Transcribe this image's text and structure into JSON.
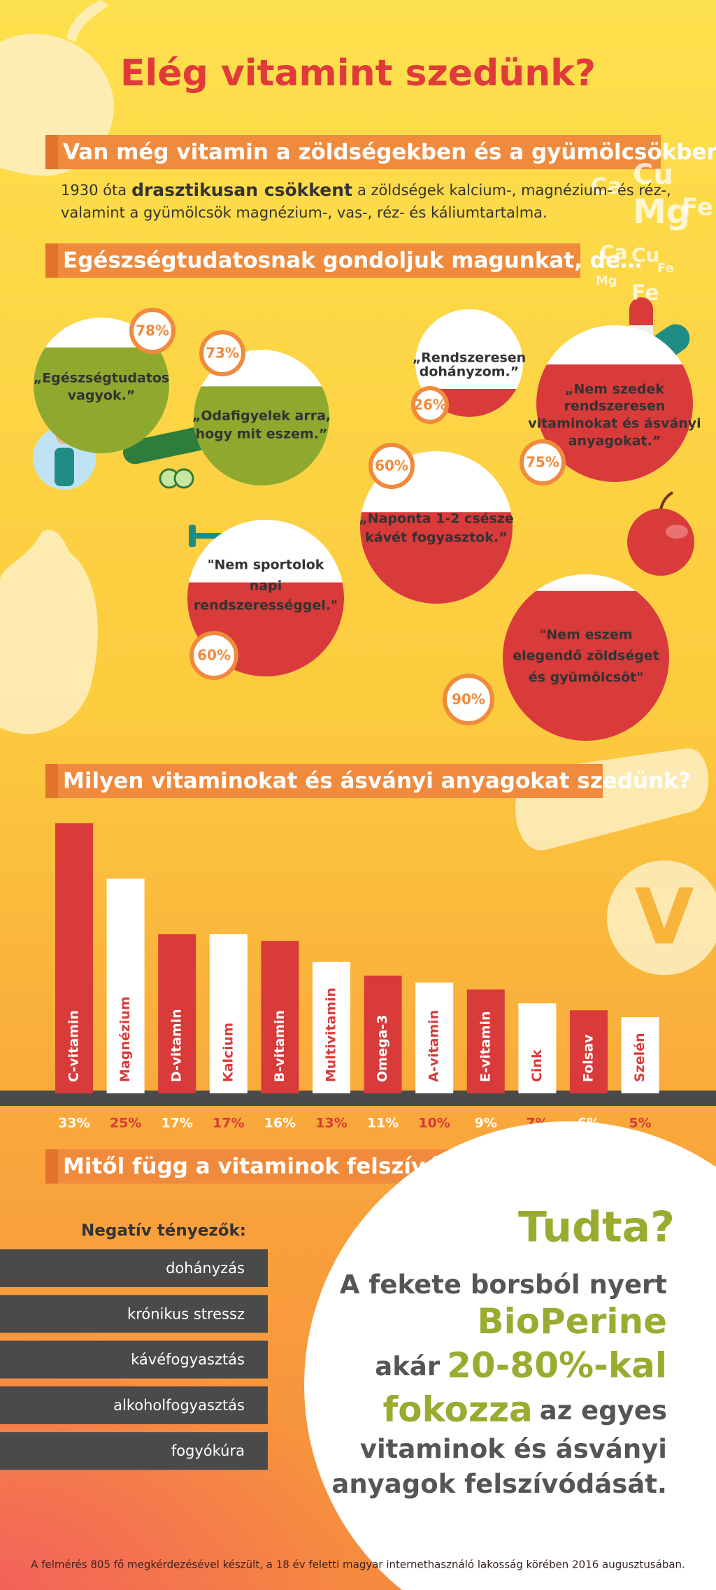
{
  "header": {
    "title": "Elég vitamint szedünk?"
  },
  "section1": {
    "heading": "Van még vitamin a zöldségekben és a gyümölcsökben?",
    "lines": [
      [
        "1930 óta",
        "drasztikusan csökkent",
        "a zöldségek kalcium-, magnézium- és réz-,"
      ],
      [
        "valamint a gyümölcsök magnézium-, vas-, réz- és káliumtartalma."
      ]
    ],
    "elements": [
      "Ca",
      "Cu",
      "Mg",
      "Fe",
      "Ca",
      "Cu",
      "Fe",
      "Mg",
      "Fe"
    ]
  },
  "section2": {
    "heading": "Egészségtudatosnak gondoljuk magunkat, de…",
    "quotes": [
      [
        "„Egészségtudatos",
        "vagyok.”"
      ],
      [
        "„Odafigyelek arra,",
        "hogy mit eszem.”"
      ],
      [
        "„Rendszeresen",
        "dohányzom.”"
      ],
      [
        "„Nem szedek",
        "rendszeresen",
        "vitaminokat és ásványi",
        "anyagokat.”"
      ],
      [
        "„Naponta 1-2 csésze",
        "kávét fogyasztok.”"
      ],
      [
        "\"Nem sportolok",
        "napi",
        "rendszerességgel.\""
      ],
      [
        "\"Nem eszem",
        "elegendő zöldséget",
        "és gyümölcsöt\""
      ]
    ],
    "values": [
      78,
      73,
      26,
      75,
      60,
      60,
      90
    ],
    "value_labels": [
      "78%",
      "73%",
      "26%",
      "75%",
      "60%",
      "60%",
      "90%"
    ],
    "colors": [
      "#8fa82e",
      "#8fa82e",
      "#d93a3a",
      "#d93a3a",
      "#d93a3a",
      "#d93a3a",
      "#d93a3a"
    ]
  },
  "chart_data": {
    "type": "bar",
    "title": "Milyen vitaminokat és ásványi anyagokat szedünk?",
    "categories": [
      "C-vitamin",
      "Magnézium",
      "D-vitamin",
      "Kalcium",
      "B-vitamin",
      "Multivitamin",
      "Omega-3",
      "A-vitamin",
      "E-vitamin",
      "Cink",
      "Folsav",
      "Szelén"
    ],
    "values": [
      33,
      25,
      17,
      17,
      16,
      13,
      11,
      10,
      9,
      7,
      6,
      5
    ],
    "value_labels": [
      "33%",
      "25%",
      "17%",
      "17%",
      "16%",
      "13%",
      "11%",
      "10%",
      "9%",
      "7%",
      "6%",
      "5%"
    ],
    "colors": [
      "#d93a3a",
      "#ffffff",
      "#d93a3a",
      "#ffffff",
      "#d93a3a",
      "#ffffff",
      "#d93a3a",
      "#ffffff",
      "#d93a3a",
      "#ffffff",
      "#d93a3a",
      "#ffffff"
    ],
    "ylim": [
      -6,
      34
    ],
    "badge": "V"
  },
  "section4": {
    "heading": "Mitől függ a vitaminok felszívódása?",
    "list_title": "Negatív tényezők:",
    "factors": [
      "dohányzás",
      "krónikus stressz",
      "kávéfogyasztás",
      "alkoholfogyasztás",
      "fogyókúra"
    ],
    "tip_title": "Tudta?",
    "tip_lines": [
      [
        "A fekete borsból nyert"
      ],
      [
        "BioPerine"
      ],
      [
        "akár",
        "20-80%-kal"
      ],
      [
        "fokozza",
        "az egyes"
      ],
      [
        "vitaminok és ásványi"
      ],
      [
        "anyagok felszívódását."
      ]
    ]
  },
  "footer": "A felmérés 805 fő megkérdezésével készült, a 18 év feletti magyar internethasználó lakosság körében 2016 augusztusában."
}
